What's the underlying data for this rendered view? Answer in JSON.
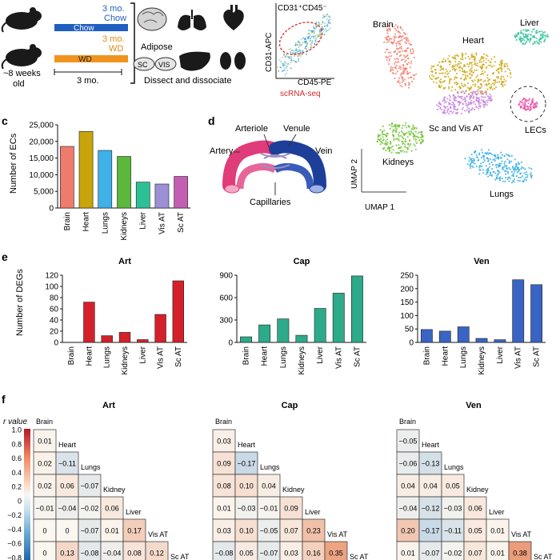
{
  "panel_a": {
    "chow_label_line1": "3 mo.",
    "chow_label_line2": "Chow",
    "chow_bar_label": "Chow",
    "wd_label_line1": "3 mo.",
    "wd_label_line2": "WD",
    "wd_bar_label": "WD",
    "duration_label": "3 mo.",
    "age_label_line1": "~8 weeks",
    "age_label_line2": "old",
    "adipose_label": "Adipose",
    "sc_label": "SC",
    "vis_label": "VIS",
    "dissect_label": "Dissect and dissociate",
    "facs_title": "CD31⁺CD45⁻",
    "facs_ylabel": "CD31-APC",
    "facs_xlabel": "CD45-PE",
    "scrna_label": "scRNA-seq",
    "colors": {
      "chow": "#1f5fbf",
      "wd": "#f0941f",
      "scrna": "#d42a2a"
    }
  },
  "panel_b": {
    "clusters": [
      "Brain",
      "Heart",
      "Liver",
      "LECs",
      "Sc and Vis AT",
      "Kidneys",
      "Lungs"
    ],
    "axis_x": "UMAP 1",
    "axis_y": "UMAP 2",
    "colors": {
      "Brain": "#f07a6a",
      "Heart": "#c9a40a",
      "Liver": "#2dbf96",
      "LECs": "#e84fa8",
      "Sc and Vis AT": "#c47ddf",
      "Kidneys": "#6abf2a",
      "Lungs": "#2aa8e0"
    }
  },
  "panel_c": {
    "letter": "c",
    "chart_data": {
      "type": "bar",
      "categories": [
        "Brain",
        "Heart",
        "Lungs",
        "Kidneys",
        "Liver",
        "Vis AT",
        "Sc AT"
      ],
      "values": [
        18500,
        23000,
        17300,
        15500,
        7800,
        7200,
        9500
      ],
      "colors": [
        "#ef7b6c",
        "#c9a40a",
        "#3fb0e8",
        "#5cb83a",
        "#2dbf96",
        "#9b8fd6",
        "#c25fb2"
      ],
      "ylabel": "Number of ECs",
      "ylim": [
        0,
        25000
      ],
      "yticks": [
        "0",
        "5,000",
        "10,000",
        "15,000",
        "20,000",
        "25,000"
      ]
    }
  },
  "panel_d": {
    "letter": "d",
    "arteriole": "Arteriole",
    "venule": "Venule",
    "artery": "Artery",
    "vein": "Vein",
    "capillaries": "Capillaries"
  },
  "panel_e": {
    "letter": "e",
    "ylabel": "Number of DEGs",
    "charts": [
      {
        "type": "bar",
        "title": "Art",
        "categories": [
          "Brain",
          "Heart",
          "Lungs",
          "Kidneys",
          "Liver",
          "Vis AT",
          "Sc AT"
        ],
        "values": [
          0,
          72,
          12,
          18,
          5,
          50,
          110
        ],
        "ylim": [
          0,
          120
        ],
        "yticks": [
          "0",
          "20",
          "40",
          "60",
          "80",
          "100",
          "120"
        ],
        "color": "#d4202a"
      },
      {
        "type": "bar",
        "title": "Cap",
        "categories": [
          "Brain",
          "Heart",
          "Lungs",
          "Kidneys",
          "Liver",
          "Vis AT",
          "Sc AT"
        ],
        "values": [
          75,
          235,
          315,
          95,
          455,
          660,
          890
        ],
        "ylim": [
          0,
          900
        ],
        "yticks": [
          "0",
          "300",
          "600",
          "900"
        ],
        "color": "#2daa8a"
      },
      {
        "type": "bar",
        "title": "Ven",
        "categories": [
          "Brain",
          "Heart",
          "Lungs",
          "Kidneys",
          "Liver",
          "Vis AT",
          "Sc AT"
        ],
        "values": [
          48,
          42,
          58,
          15,
          10,
          233,
          215
        ],
        "ylim": [
          0,
          250
        ],
        "yticks": [
          "0",
          "50",
          "100",
          "150",
          "200",
          "250"
        ],
        "color": "#3a64c4"
      }
    ]
  },
  "panel_f": {
    "letter": "f",
    "colorbar_title": "r value",
    "colorbar_ticks": [
      "1.0",
      "0.8",
      "0.6",
      "0.4",
      "0.2",
      "0",
      "−0.2",
      "−0.4",
      "−0.6",
      "−0.8"
    ],
    "tissues": [
      "Brain",
      "Heart",
      "Lungs",
      "Kidney",
      "Liver",
      "Vis AT",
      "Sc AT"
    ],
    "matrices": [
      {
        "title": "Art",
        "rows": [
          [
            "0.01"
          ],
          [
            "0.02",
            "−0.11"
          ],
          [
            "0.02",
            "0.06",
            "−0.07"
          ],
          [
            "−0.01",
            "−0.04",
            "−0.02",
            "0.06"
          ],
          [
            "0",
            "0",
            "−0.07",
            "0.01",
            "0.17"
          ],
          [
            "0",
            "0.13",
            "−0.08",
            "−0.04",
            "0.08",
            "0.12"
          ]
        ]
      },
      {
        "title": "Cap",
        "rows": [
          [
            "0.03"
          ],
          [
            "0.09",
            "−0.17"
          ],
          [
            "0.08",
            "0.10",
            "0.04"
          ],
          [
            "0.01",
            "−0.03",
            "−0.01",
            "0.09"
          ],
          [
            "0.03",
            "0.10",
            "−0.05",
            "0.07",
            "0.23"
          ],
          [
            "−0.08",
            "0.05",
            "−0.07",
            "0.03",
            "0.16",
            "0.35"
          ]
        ]
      },
      {
        "title": "Ven",
        "rows": [
          [
            "−0.05"
          ],
          [
            "−0.06",
            "−0.13"
          ],
          [
            "0.04",
            "0.04",
            "0.05"
          ],
          [
            "−0.04",
            "−0.12",
            "−0.03",
            "0.06"
          ],
          [
            "0.20",
            "−0.17",
            "−0.11",
            "0.05",
            "0.01"
          ],
          [
            "0.01",
            "−0.07",
            "−0.02",
            "0.07",
            "0.01",
            "0.38"
          ]
        ]
      }
    ]
  }
}
